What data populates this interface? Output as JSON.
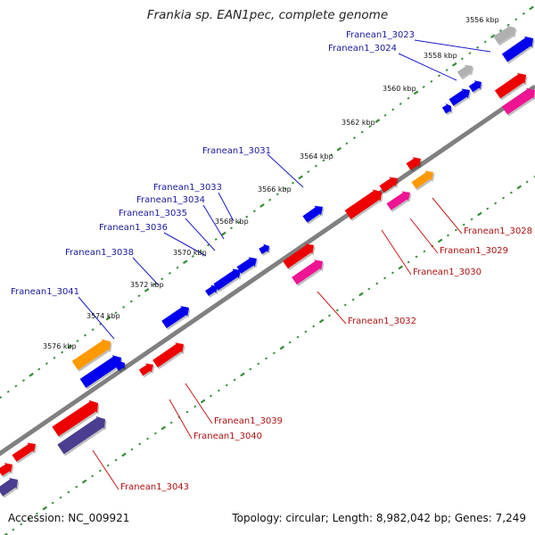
{
  "title": "Frankia sp. EAN1pec, complete genome",
  "footer": {
    "accession": "Accession: NC_009921",
    "summary": "Topology: circular; Length: 8,982,042 bp; Genes: 7,249"
  },
  "colors": {
    "backbone": "#808080",
    "tick": "#2e8b2e",
    "forward_label": "#1a1aa0",
    "reverse_label": "#b01010",
    "gene_blue": "#0000ee",
    "gene_red": "#ee0000",
    "gene_pink": "#ee1493",
    "gene_orange": "#ff9900",
    "gene_gray": "#b0b0b0",
    "gene_purple": "#4b3d8f"
  },
  "kbp_markers": [
    "3556 kbp",
    "3558 kbp",
    "3560 kbp",
    "3562 kbp",
    "3564 kbp",
    "3566 kbp",
    "3568 kbp",
    "3570 kbp",
    "3572 kbp",
    "3574 kbp",
    "3576 kbp"
  ],
  "forward_labels": [
    "Franean1_3023",
    "Franean1_3024",
    "Franean1_3031",
    "Franean1_3033",
    "Franean1_3034",
    "Franean1_3035",
    "Franean1_3036",
    "Franean1_3038",
    "Franean1_3041"
  ],
  "reverse_labels": [
    "Franean1_3028",
    "Franean1_3029",
    "Franean1_3030",
    "Franean1_3032",
    "Franean1_3039",
    "Franean1_3040",
    "Franean1_3043"
  ]
}
